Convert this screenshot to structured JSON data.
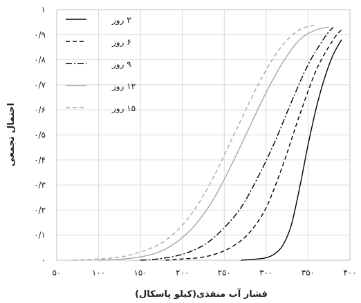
{
  "chart_data": {
    "type": "line",
    "title": "",
    "xlabel": "فشار آب منفذی(کیلو پاسکال)",
    "ylabel": "احتمال تجمعی",
    "xlim": [
      50,
      400
    ],
    "ylim": [
      0,
      1
    ],
    "x_ticks": [
      50,
      100,
      150,
      200,
      250,
      300,
      350,
      400
    ],
    "x_tick_labels": [
      "۵۰",
      "۱۰۰",
      "۱۵۰",
      "۲۰۰",
      "۲۵۰",
      "۳۰۰",
      "۳۵۰",
      "۴۰۰"
    ],
    "y_ticks": [
      0,
      0.1,
      0.2,
      0.3,
      0.4,
      0.5,
      0.6,
      0.7,
      0.8,
      0.9,
      1
    ],
    "y_tick_labels": [
      "۰",
      "۰/۱",
      "۰/۲",
      "۰/۳",
      "۰/۴",
      "۰/۵",
      "۰/۶",
      "۰/۷",
      "۰/۸",
      "۰/۹",
      "۱"
    ],
    "grid": true,
    "legend": "top-left",
    "series": [
      {
        "name": "۳ روز",
        "color": "#000000",
        "dash": "solid",
        "x": [
          270,
          290,
          300,
          310,
          320,
          330,
          340,
          350,
          360,
          370,
          380,
          390
        ],
        "y": [
          0,
          0.005,
          0.01,
          0.025,
          0.06,
          0.14,
          0.29,
          0.46,
          0.61,
          0.73,
          0.82,
          0.88
        ]
      },
      {
        "name": "۶ روز",
        "color": "#000000",
        "dash": "dashed",
        "x": [
          180,
          200,
          220,
          240,
          260,
          280,
          300,
          320,
          340,
          360,
          380,
          390
        ],
        "y": [
          0,
          0.005,
          0.01,
          0.025,
          0.055,
          0.11,
          0.21,
          0.38,
          0.58,
          0.76,
          0.88,
          0.92
        ]
      },
      {
        "name": "۹ روز",
        "color": "#000000",
        "dash": "dashdot",
        "x": [
          150,
          170,
          190,
          210,
          230,
          250,
          270,
          290,
          310,
          330,
          350,
          370,
          380
        ],
        "y": [
          0,
          0.005,
          0.015,
          0.035,
          0.07,
          0.13,
          0.21,
          0.33,
          0.47,
          0.63,
          0.78,
          0.89,
          0.93
        ]
      },
      {
        "name": "۱۲ روز",
        "color": "#a6a6a6",
        "dash": "solid",
        "x": [
          100,
          130,
          160,
          180,
          200,
          220,
          240,
          260,
          280,
          300,
          320,
          340,
          360,
          375
        ],
        "y": [
          0,
          0.005,
          0.02,
          0.045,
          0.09,
          0.16,
          0.26,
          0.39,
          0.53,
          0.67,
          0.79,
          0.88,
          0.92,
          0.93
        ]
      },
      {
        "name": "۱۵ روز",
        "color": "#a6a6a6",
        "dash": "dashed",
        "x": [
          70,
          100,
          130,
          160,
          180,
          200,
          220,
          240,
          260,
          280,
          300,
          320,
          340,
          360
        ],
        "y": [
          0,
          0.005,
          0.015,
          0.045,
          0.08,
          0.14,
          0.23,
          0.35,
          0.49,
          0.63,
          0.76,
          0.86,
          0.92,
          0.94
        ]
      }
    ]
  }
}
